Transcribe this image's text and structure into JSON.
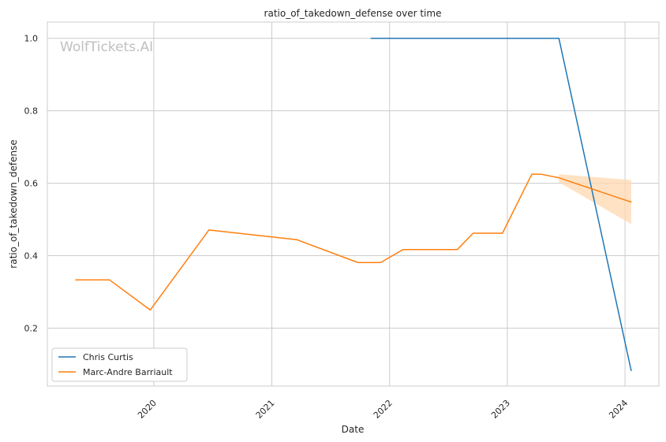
{
  "chart_data": {
    "type": "line",
    "title": "ratio_of_takedown_defense over time",
    "xlabel": "Date",
    "ylabel": "ratio_of_takedown_defense",
    "watermark": "WolfTickets.AI",
    "x_ticks": [
      "2020",
      "2021",
      "2022",
      "2023",
      "2024"
    ],
    "y_ticks": [
      "0.2",
      "0.4",
      "0.6",
      "0.8",
      "1.0"
    ],
    "xlim": [
      "2019-02-05",
      "2024-04-15"
    ],
    "ylim": [
      0.04,
      1.045
    ],
    "grid": true,
    "legend_position": "lower-left",
    "series": [
      {
        "name": "Chris Curtis",
        "color": "#1f77b4",
        "points": [
          {
            "x": "2021-11-05",
            "y": 1.0
          },
          {
            "x": "2023-06-10",
            "y": 1.0
          },
          {
            "x": "2024-01-20",
            "y": 0.083
          }
        ]
      },
      {
        "name": "Marc-Andre Barriault",
        "color": "#ff7f0e",
        "band_color": "#ffd8b0",
        "points": [
          {
            "x": "2019-05-04",
            "y": 0.333
          },
          {
            "x": "2019-08-17",
            "y": 0.333
          },
          {
            "x": "2019-12-21",
            "y": 0.25
          },
          {
            "x": "2020-06-20",
            "y": 0.471
          },
          {
            "x": "2021-03-20",
            "y": 0.444
          },
          {
            "x": "2021-09-25",
            "y": 0.381
          },
          {
            "x": "2021-12-04",
            "y": 0.381
          },
          {
            "x": "2022-02-12",
            "y": 0.417
          },
          {
            "x": "2022-07-30",
            "y": 0.417
          },
          {
            "x": "2022-09-17",
            "y": 0.462
          },
          {
            "x": "2022-12-17",
            "y": 0.462
          },
          {
            "x": "2023-03-18",
            "y": 0.625
          },
          {
            "x": "2023-04-15",
            "y": 0.625
          },
          {
            "x": "2023-06-10",
            "y": 0.615
          },
          {
            "x": "2024-01-20",
            "y": 0.548
          }
        ],
        "band": [
          {
            "x": "2023-06-10",
            "lower": 0.603,
            "upper": 0.625
          },
          {
            "x": "2024-01-20",
            "lower": 0.487,
            "upper": 0.609
          }
        ]
      }
    ]
  }
}
